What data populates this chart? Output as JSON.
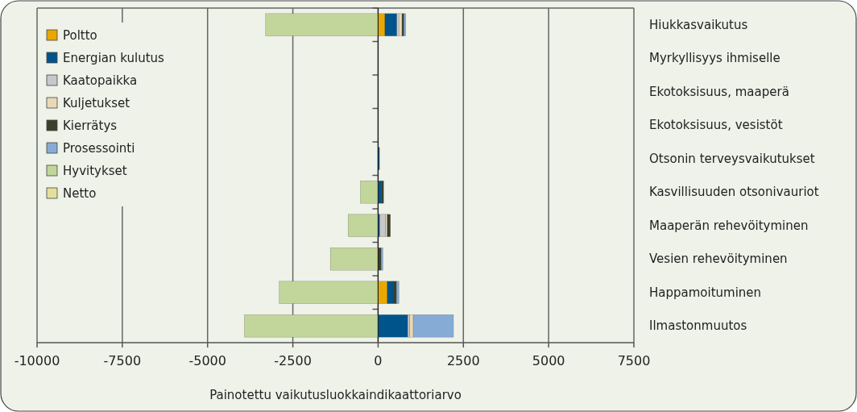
{
  "chart_data": {
    "type": "bar",
    "orientation": "horizontal",
    "stacked": true,
    "xlabel": "Painotettu vaikutusluokkaindikaattoriarvo",
    "categories": [
      "Hiukkasvaikutus",
      "Myrkyllisyys ihmiselle",
      "Ekotoksisuus, maaperä",
      "Ekotoksisuus, vesistöt",
      "Otsonin terveysvaikutukset",
      "Kasvillisuuden otsonivauriot",
      "Maaperän rehevöityminen",
      "Vesien rehevöityminen",
      "Happamoituminen",
      "Ilmastonmuutos"
    ],
    "series": [
      {
        "name": "Poltto",
        "color": "#e8a800",
        "values": [
          200,
          0,
          0,
          0,
          0,
          0,
          0,
          0,
          270,
          0
        ]
      },
      {
        "name": "Energian kulutus",
        "color": "#00548c",
        "values": [
          350,
          0,
          0,
          0,
          40,
          90,
          50,
          0,
          170,
          870
        ]
      },
      {
        "name": "Kaatopaikka",
        "color": "#c6c8cc",
        "values": [
          60,
          0,
          0,
          0,
          0,
          0,
          170,
          0,
          0,
          60
        ]
      },
      {
        "name": "Kuljetukset",
        "color": "#ead9b8",
        "values": [
          90,
          0,
          0,
          0,
          0,
          0,
          50,
          0,
          0,
          100
        ]
      },
      {
        "name": "Kierrätys",
        "color": "#3a3f2a",
        "values": [
          60,
          0,
          0,
          0,
          0,
          70,
          90,
          90,
          100,
          0
        ]
      },
      {
        "name": "Prosessointi",
        "color": "#86acd6",
        "values": [
          50,
          0,
          0,
          0,
          0,
          0,
          0,
          50,
          70,
          1180
        ]
      },
      {
        "name": "Hyvitykset",
        "color": "#c2d59b",
        "values": [
          -3300,
          0,
          0,
          0,
          0,
          -520,
          -880,
          -1400,
          -2900,
          -3920
        ]
      },
      {
        "name": "Netto",
        "color": "#e4e09a",
        "values": [
          null,
          null,
          null,
          null,
          null,
          null,
          null,
          null,
          null,
          null
        ]
      }
    ],
    "xlim": [
      -10000,
      7500
    ],
    "xticks": [
      -10000,
      -7500,
      -5000,
      -2500,
      0,
      2500,
      5000,
      7500
    ],
    "grid": "x",
    "legend": "top left"
  }
}
